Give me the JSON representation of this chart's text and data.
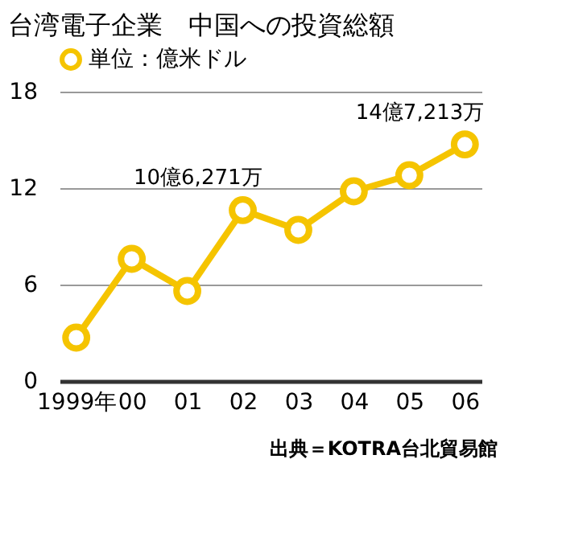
{
  "chart_data": {
    "type": "line",
    "title": "台湾電子企業　中国への投資総額",
    "categories": [
      "1999年",
      "00",
      "01",
      "02",
      "03",
      "04",
      "05",
      "06"
    ],
    "series": [
      {
        "name": "単位：億米ドル",
        "color": "#f5c400",
        "values": [
          2.7,
          7.6,
          5.6,
          10.6271,
          9.4,
          11.8,
          12.8,
          14.7213
        ]
      }
    ],
    "ylim": [
      0,
      18
    ],
    "yticks": [
      0,
      6,
      12,
      18
    ],
    "grid": "y",
    "legend": "top",
    "marker": "circle",
    "line_style": "solid",
    "annotations": [
      {
        "text": "10億6,271万",
        "x": "02",
        "y": 10.6271
      },
      {
        "text": "14億7,213万",
        "x": "06",
        "y": 14.7213
      },
      "出典＝KOTRA台北貿易館"
    ]
  }
}
